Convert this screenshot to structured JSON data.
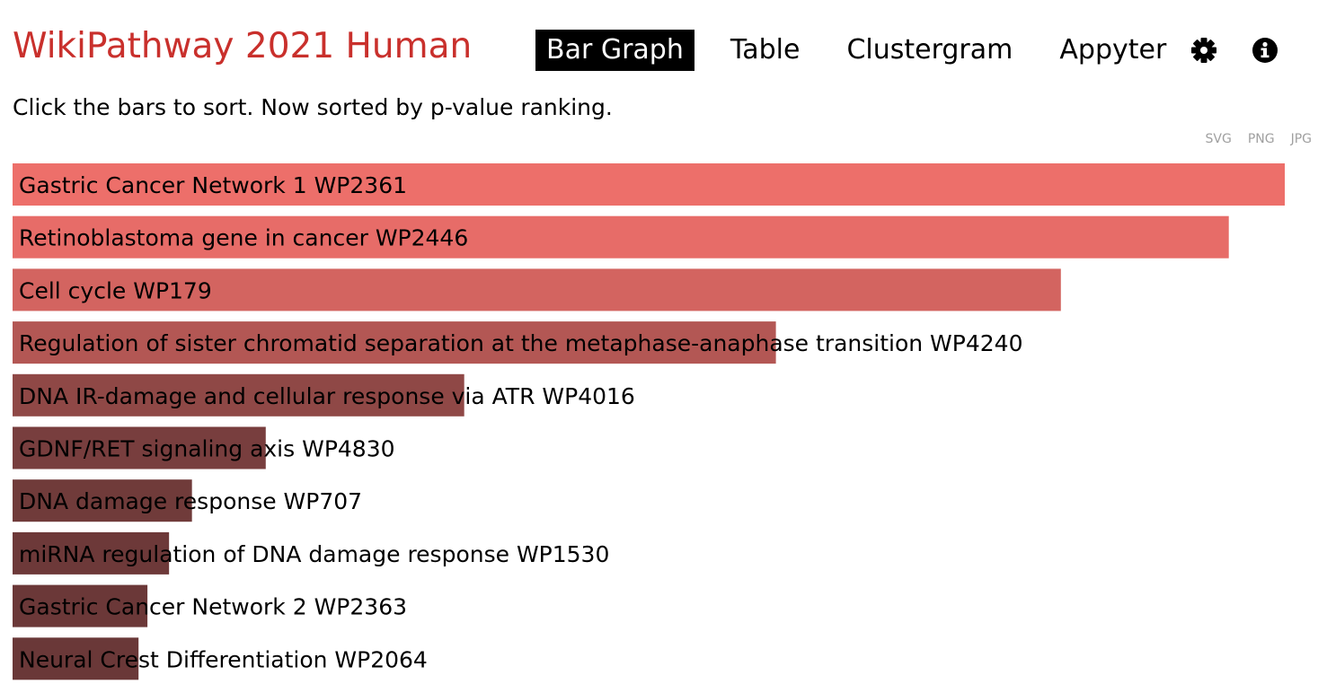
{
  "header": {
    "library_title": "WikiPathway 2021 Human",
    "tabs": [
      {
        "label": "Bar Graph",
        "active": true
      },
      {
        "label": "Table",
        "active": false
      },
      {
        "label": "Clustergram",
        "active": false
      },
      {
        "label": "Appyter",
        "active": false
      }
    ],
    "icons": [
      "gear-icon",
      "info-icon"
    ]
  },
  "instruction": "Click the bars to sort. Now sorted by p-value ranking.",
  "export": {
    "svg": "SVG",
    "png": "PNG",
    "jpg": "JPG"
  },
  "colors": {
    "title": "#c9302c",
    "bar_max": "#ed6f6a",
    "bar_min": "#6a3838"
  },
  "chart_data": {
    "type": "bar",
    "orientation": "horizontal",
    "sorted_by": "p-value ranking",
    "categories": [
      "Gastric Cancer Network 1 WP2361",
      "Retinoblastoma gene in cancer WP2446",
      "Cell cycle WP179",
      "Regulation of sister chromatid separation at the metaphase-anaphase transition WP4240",
      "DNA IR-damage and cellular response via ATR WP4016",
      "GDNF/RET signaling axis WP4830",
      "DNA damage response WP707",
      "miRNA regulation of DNA damage response WP1530",
      "Gastric Cancer Network 2 WP2363",
      "Neural Crest Differentiation WP2064"
    ],
    "values": [
      1.0,
      0.956,
      0.824,
      0.6,
      0.355,
      0.199,
      0.141,
      0.123,
      0.106,
      0.099
    ],
    "value_scale": "relative to the longest bar",
    "xlim": [
      0,
      1
    ],
    "grid": false,
    "legend": "none"
  }
}
